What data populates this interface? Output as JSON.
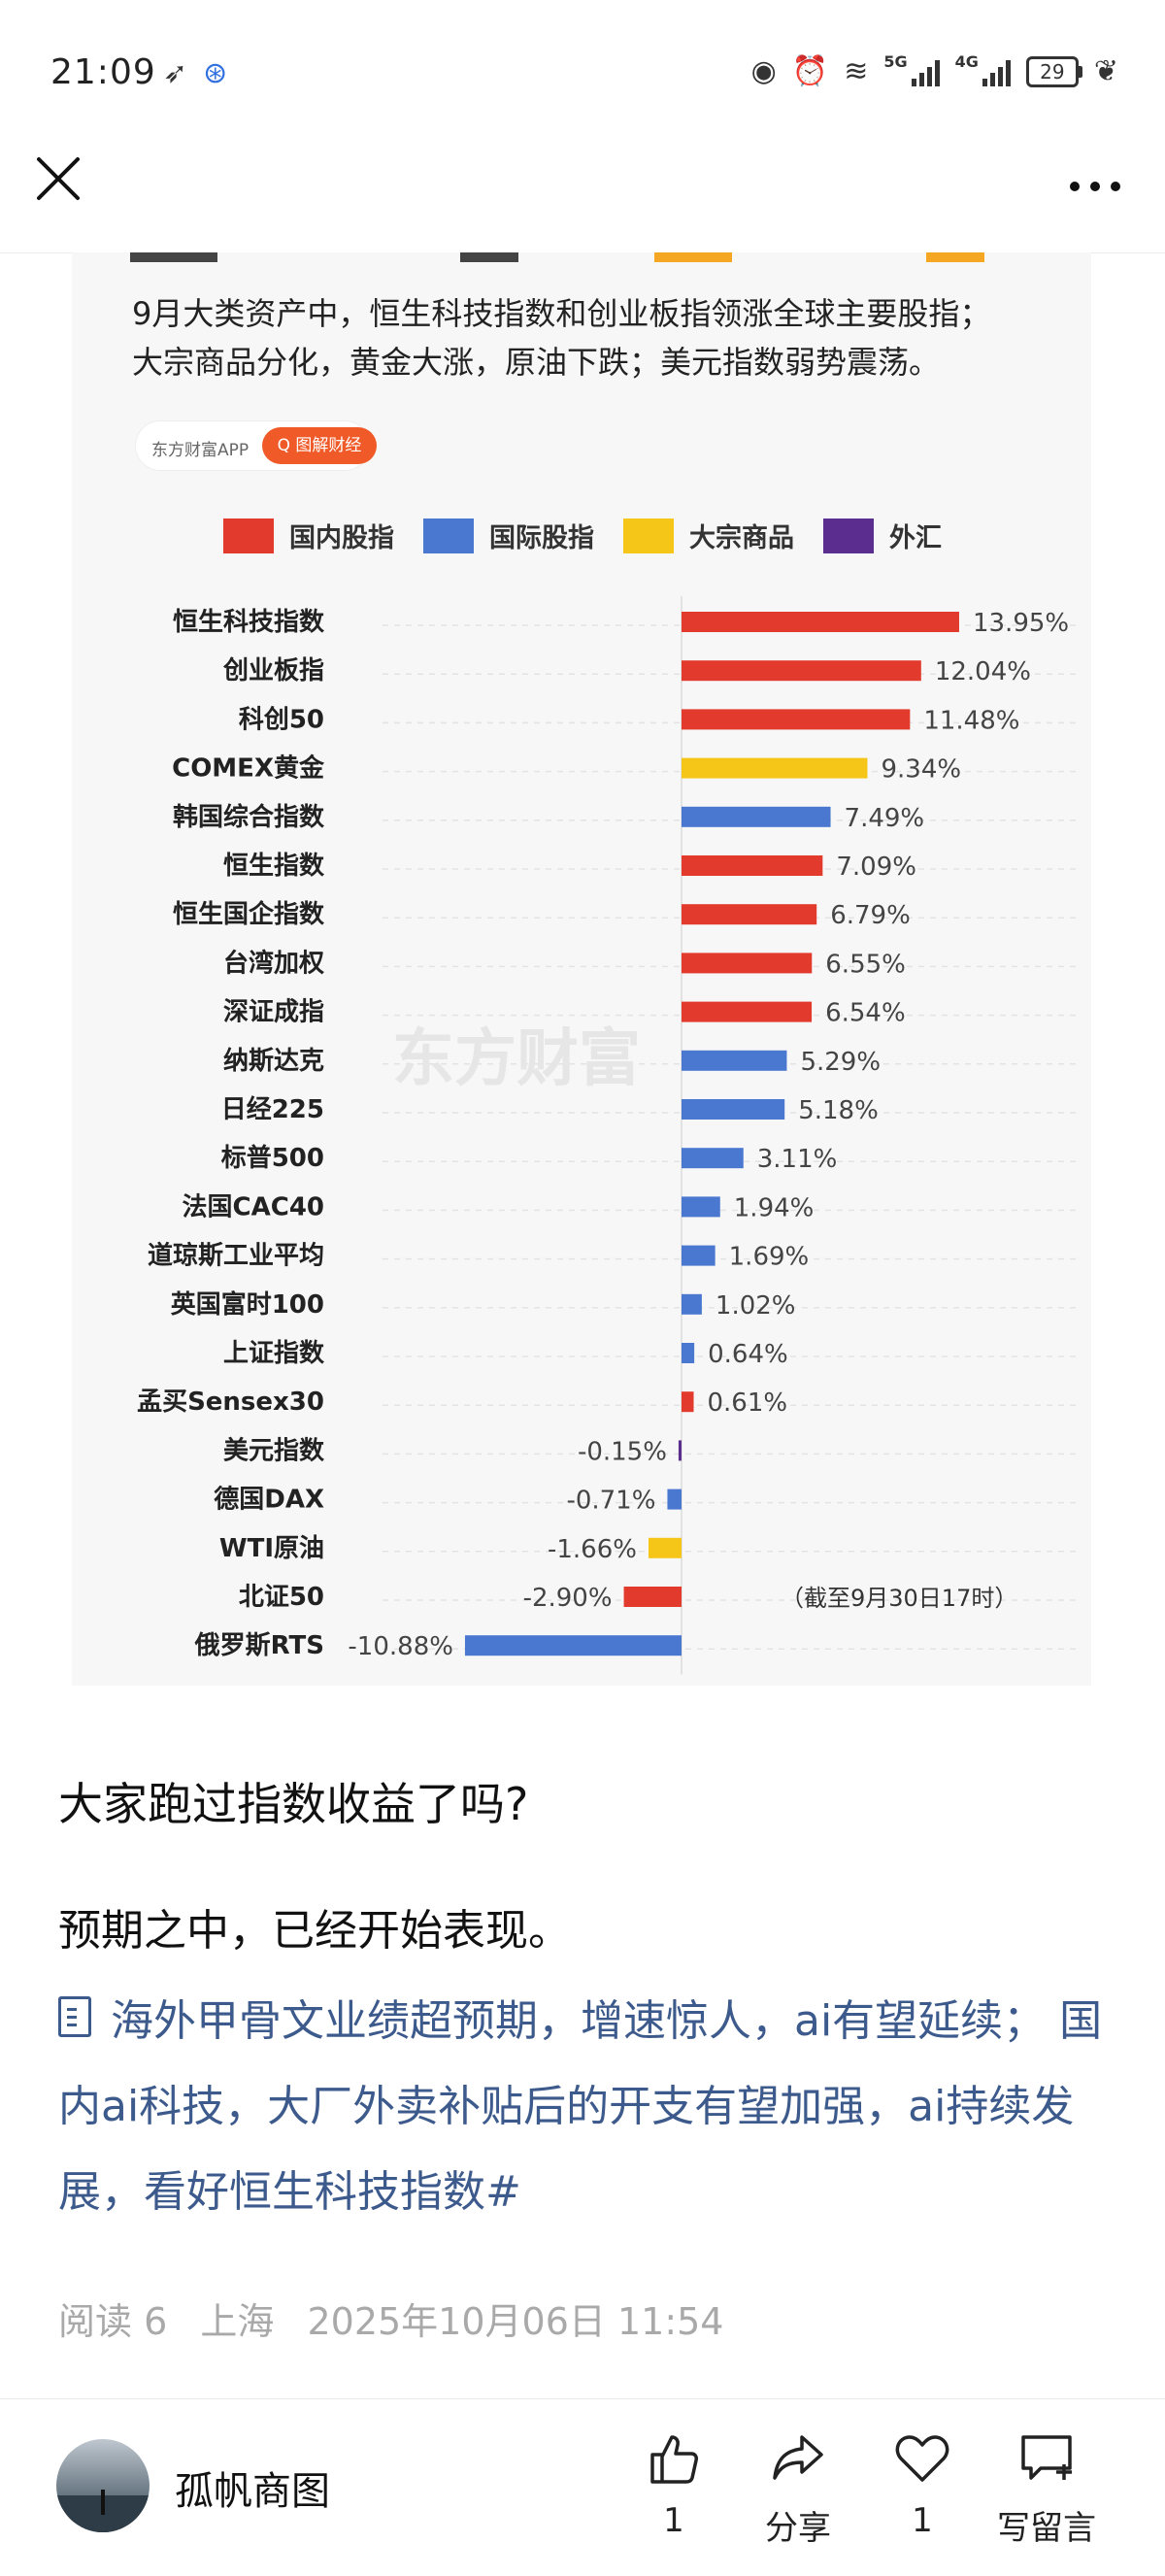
{
  "status_bar": {
    "time": "21:09",
    "network_5g": "5G",
    "network_4g": "4G",
    "battery": "29"
  },
  "nav": {
    "close_icon": "close-icon",
    "more_icon": "more-icon"
  },
  "chart_image": {
    "title_line1": "9月大类资产中，恒生科技指数和创业板指领涨全球主要股指；",
    "title_line2": "大宗商品分化，黄金大涨，原油下跌；美元指数弱势震荡。",
    "source_name": "东方财富APP",
    "source_tag": "Q 图解财经",
    "watermark": "东方财富",
    "note": "（截至9月30日17时）",
    "legend": [
      {
        "label": "国内股指",
        "color": "#e23b2e"
      },
      {
        "label": "国际股指",
        "color": "#4a78d0"
      },
      {
        "label": "大宗商品",
        "color": "#f5c518"
      },
      {
        "label": "外汇",
        "color": "#5b2d8e"
      }
    ]
  },
  "chart_data": {
    "type": "bar",
    "orientation": "horizontal",
    "title": "",
    "xlabel": "",
    "ylabel": "",
    "unit": "%",
    "xlim": [
      -11,
      14
    ],
    "legend_position": "top",
    "grid": true,
    "categories": [
      "恒生科技指数",
      "创业板指",
      "科创50",
      "COMEX黄金",
      "韩国综合指数",
      "恒生指数",
      "恒生国企指数",
      "台湾加权",
      "深证成指",
      "纳斯达克",
      "日经225",
      "标普500",
      "法国CAC40",
      "道琼斯工业平均",
      "英国富时100",
      "上证指数",
      "孟买Sensex30",
      "美元指数",
      "德国DAX",
      "WTI原油",
      "北证50",
      "俄罗斯RTS"
    ],
    "values": [
      13.95,
      12.04,
      11.48,
      9.34,
      7.49,
      7.09,
      6.79,
      6.55,
      6.54,
      5.29,
      5.18,
      3.11,
      1.94,
      1.69,
      1.02,
      0.64,
      0.61,
      -0.15,
      -0.71,
      -1.66,
      -2.9,
      -10.88
    ],
    "value_labels": [
      "13.95%",
      "12.04%",
      "11.48%",
      "9.34%",
      "7.49%",
      "7.09%",
      "6.79%",
      "6.55%",
      "6.54%",
      "5.29%",
      "5.18%",
      "3.11%",
      "1.94%",
      "1.69%",
      "1.02%",
      "0.64%",
      "0.61%",
      "-0.15%",
      "-0.71%",
      "-1.66%",
      "-2.90%",
      "-10.88%"
    ],
    "groups": [
      "国内股指",
      "国内股指",
      "国内股指",
      "大宗商品",
      "国际股指",
      "国内股指",
      "国内股指",
      "国内股指",
      "国内股指",
      "国际股指",
      "国际股指",
      "国际股指",
      "国际股指",
      "国际股指",
      "国际股指",
      "国际股指",
      "国内股指",
      "外汇",
      "国际股指",
      "大宗商品",
      "国内股指",
      "国际股指"
    ]
  },
  "article": {
    "headline": "大家跑过指数收益了吗?",
    "paragraph": "预期之中，已经开始表现。",
    "tagged_text": "海外甲骨文业绩超预期，增速惊人，ai有望延续； 国内ai科技，大厂外卖补贴后的开支有望加强，ai持续发展，看好恒生科技指数#",
    "meta": {
      "reads": "阅读 6",
      "location": "上海",
      "datetime": "2025年10月06日 11:54"
    }
  },
  "bottom_bar": {
    "author": "孤帆商图",
    "like_count": "1",
    "share_label": "分享",
    "heart_count": "1",
    "comment_label": "写留言"
  }
}
